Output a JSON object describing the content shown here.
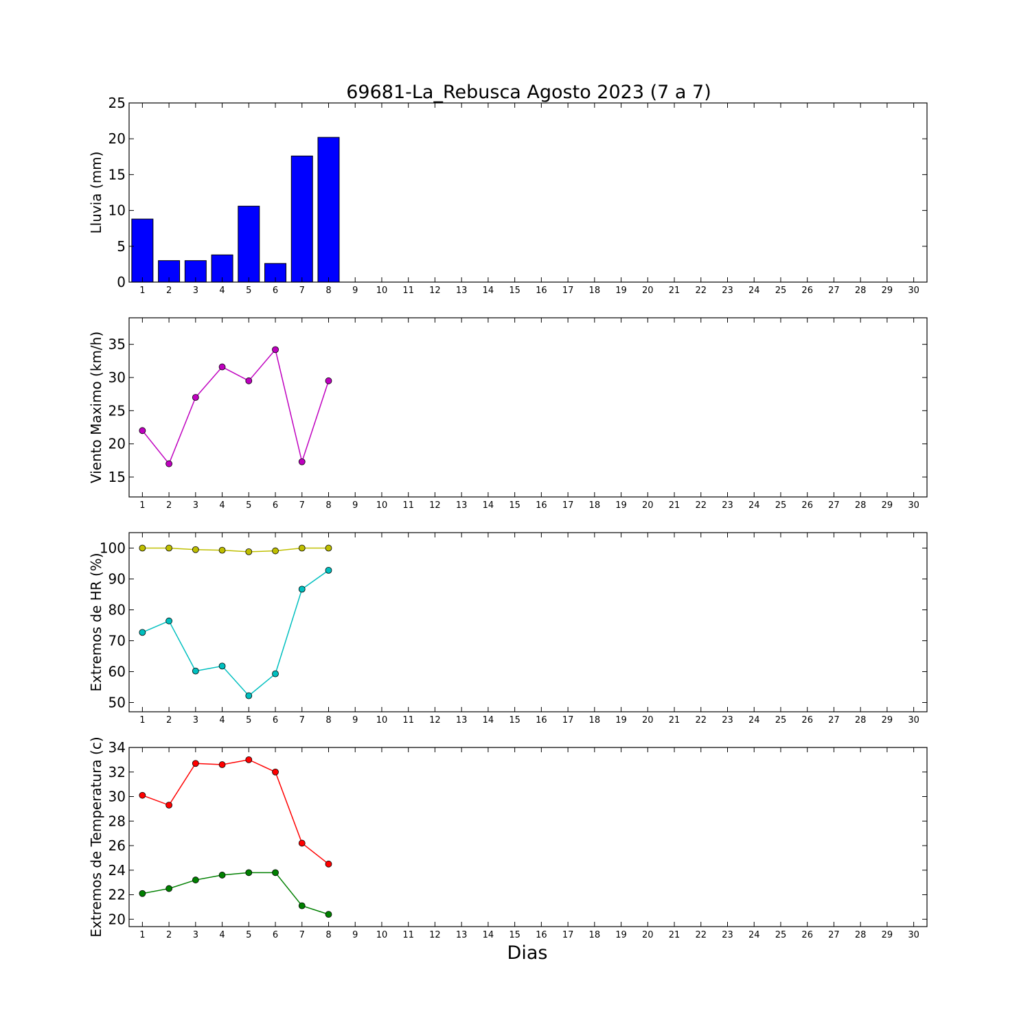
{
  "chart_data": {
    "title": "69681-La_Rebusca Agosto 2023  (7 a 7)",
    "xlabel": "Dias",
    "x_ticks": [
      1,
      2,
      3,
      4,
      5,
      6,
      7,
      8,
      9,
      10,
      11,
      12,
      13,
      14,
      15,
      16,
      17,
      18,
      19,
      20,
      21,
      22,
      23,
      24,
      25,
      26,
      27,
      28,
      29,
      30
    ],
    "xlim": [
      0.5,
      30.5
    ],
    "panels": [
      {
        "type": "bar",
        "ylabel": "Lluvia (mm)",
        "ylim": [
          0,
          25
        ],
        "y_ticks": [
          0,
          5,
          10,
          15,
          20,
          25
        ],
        "x": [
          1,
          2,
          3,
          4,
          5,
          6,
          7,
          8
        ],
        "series": [
          {
            "color": "#0000ff",
            "values": [
              8.8,
              3.0,
              3.0,
              3.8,
              10.6,
              2.6,
              17.6,
              20.2
            ]
          }
        ]
      },
      {
        "type": "line",
        "ylabel": "Viento Maximo (km/h)",
        "ylim": [
          12,
          39
        ],
        "y_ticks": [
          15,
          20,
          25,
          30,
          35
        ],
        "x": [
          1,
          2,
          3,
          4,
          5,
          6,
          7,
          8
        ],
        "series": [
          {
            "color": "#bf00bf",
            "values": [
              22.0,
              17.0,
              27.0,
              31.6,
              29.5,
              34.2,
              17.3,
              29.5
            ]
          }
        ]
      },
      {
        "type": "line",
        "ylabel": "Extremos de HR (%)",
        "ylim": [
          47,
          105
        ],
        "y_ticks": [
          50,
          60,
          70,
          80,
          90,
          100
        ],
        "x": [
          1,
          2,
          3,
          4,
          5,
          6,
          7,
          8
        ],
        "series": [
          {
            "color": "#bfbf00",
            "values": [
              100,
              100,
              99.5,
              99.3,
              98.8,
              99.1,
              100,
              100
            ]
          },
          {
            "color": "#00bfbf",
            "values": [
              72.7,
              76.4,
              60.2,
              61.8,
              52.2,
              59.3,
              86.7,
              92.8
            ]
          }
        ]
      },
      {
        "type": "line",
        "ylabel": "Extremos de Temperatura (c)",
        "ylim": [
          19.4,
          34
        ],
        "y_ticks": [
          20,
          22,
          24,
          26,
          28,
          30,
          32,
          34
        ],
        "x": [
          1,
          2,
          3,
          4,
          5,
          6,
          7,
          8
        ],
        "series": [
          {
            "color": "#ff0000",
            "values": [
              30.1,
              29.3,
              32.7,
              32.6,
              33.0,
              32.0,
              26.2,
              24.5
            ]
          },
          {
            "color": "#008000",
            "values": [
              22.1,
              22.5,
              23.2,
              23.6,
              23.8,
              23.8,
              21.1,
              20.4
            ]
          }
        ]
      }
    ]
  }
}
